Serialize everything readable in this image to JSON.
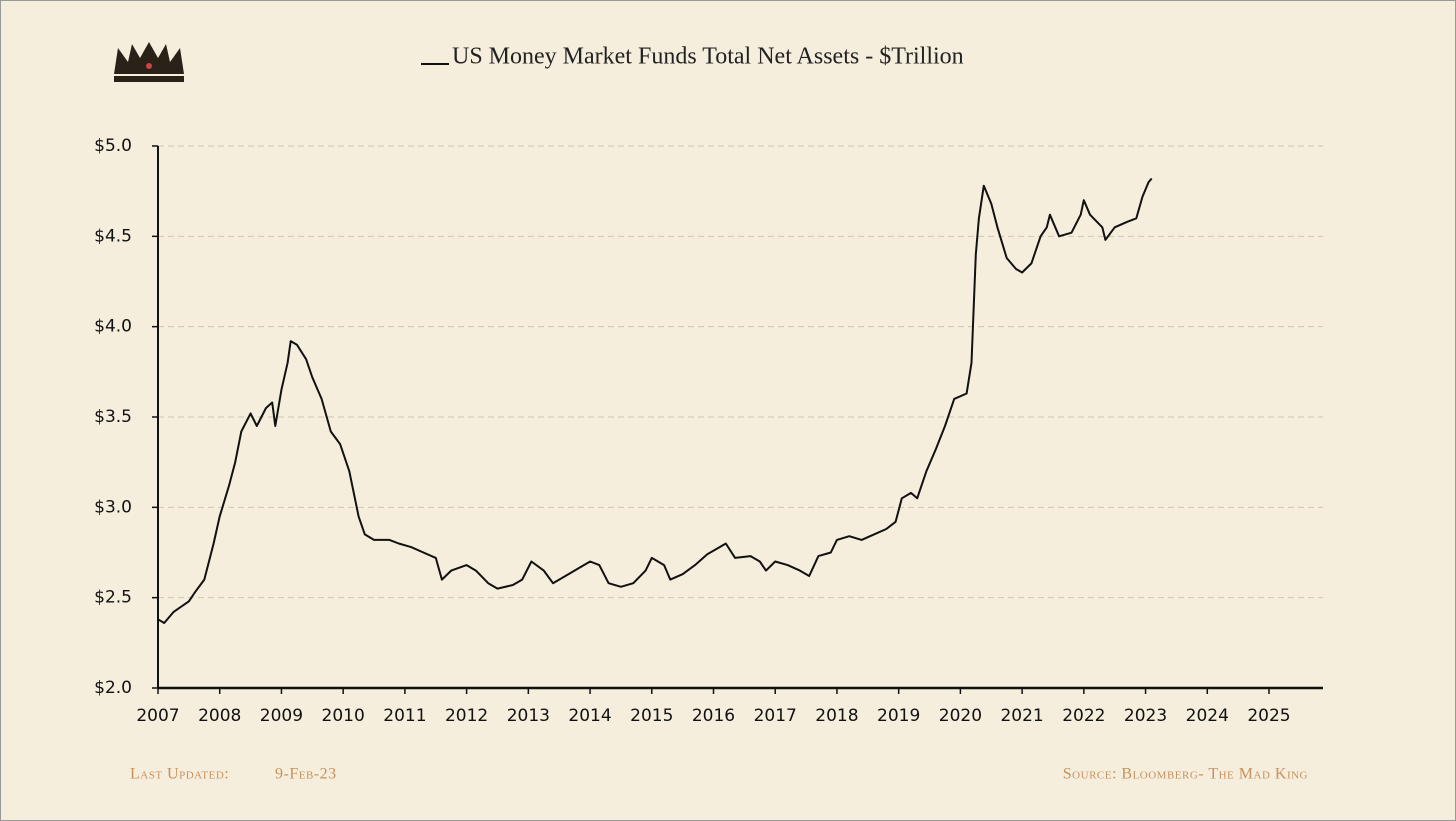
{
  "chart_data": {
    "type": "line",
    "series": [
      {
        "name": "US Money Market Funds Total Net Assets - $Trillion",
        "color": "#111111",
        "x": [
          2007.0,
          2007.1,
          2007.25,
          2007.5,
          2007.6,
          2007.75,
          2007.9,
          2008.0,
          2008.15,
          2008.25,
          2008.35,
          2008.5,
          2008.6,
          2008.75,
          2008.85,
          2008.9,
          2009.0,
          2009.1,
          2009.15,
          2009.25,
          2009.4,
          2009.5,
          2009.65,
          2009.8,
          2009.95,
          2010.1,
          2010.25,
          2010.35,
          2010.5,
          2010.75,
          2010.9,
          2011.1,
          2011.3,
          2011.5,
          2011.6,
          2011.75,
          2012.0,
          2012.15,
          2012.35,
          2012.5,
          2012.75,
          2012.9,
          2013.05,
          2013.25,
          2013.4,
          2013.6,
          2013.8,
          2014.0,
          2014.15,
          2014.3,
          2014.5,
          2014.7,
          2014.9,
          2015.0,
          2015.2,
          2015.3,
          2015.5,
          2015.7,
          2015.9,
          2016.1,
          2016.2,
          2016.35,
          2016.6,
          2016.75,
          2016.85,
          2017.0,
          2017.2,
          2017.4,
          2017.55,
          2017.7,
          2017.9,
          2018.0,
          2018.2,
          2018.4,
          2018.6,
          2018.8,
          2018.95,
          2019.05,
          2019.2,
          2019.3,
          2019.45,
          2019.6,
          2019.75,
          2019.9,
          2020.1,
          2020.18,
          2020.25,
          2020.3,
          2020.38,
          2020.5,
          2020.6,
          2020.75,
          2020.9,
          2021.0,
          2021.15,
          2021.3,
          2021.4,
          2021.45,
          2021.6,
          2021.8,
          2021.95,
          2022.0,
          2022.1,
          2022.3,
          2022.35,
          2022.5,
          2022.7,
          2022.85,
          2022.95,
          2023.05,
          2023.1
        ],
        "values": [
          2.38,
          2.36,
          2.42,
          2.48,
          2.53,
          2.6,
          2.8,
          2.95,
          3.12,
          3.25,
          3.42,
          3.52,
          3.45,
          3.55,
          3.58,
          3.45,
          3.65,
          3.8,
          3.92,
          3.9,
          3.82,
          3.72,
          3.6,
          3.42,
          3.35,
          3.2,
          2.95,
          2.85,
          2.82,
          2.82,
          2.8,
          2.78,
          2.75,
          2.72,
          2.6,
          2.65,
          2.68,
          2.65,
          2.58,
          2.55,
          2.57,
          2.6,
          2.7,
          2.65,
          2.58,
          2.62,
          2.66,
          2.7,
          2.68,
          2.58,
          2.56,
          2.58,
          2.65,
          2.72,
          2.68,
          2.6,
          2.63,
          2.68,
          2.74,
          2.78,
          2.8,
          2.72,
          2.73,
          2.7,
          2.65,
          2.7,
          2.68,
          2.65,
          2.62,
          2.73,
          2.75,
          2.82,
          2.84,
          2.82,
          2.85,
          2.88,
          2.92,
          3.05,
          3.08,
          3.05,
          3.2,
          3.32,
          3.45,
          3.6,
          3.63,
          3.8,
          4.4,
          4.6,
          4.78,
          4.68,
          4.55,
          4.38,
          4.32,
          4.3,
          4.35,
          4.5,
          4.55,
          4.62,
          4.5,
          4.52,
          4.62,
          4.7,
          4.62,
          4.55,
          4.48,
          4.55,
          4.58,
          4.6,
          4.72,
          4.8,
          4.82
        ]
      }
    ],
    "xlim": [
      2007,
      2025
    ],
    "xticks": [
      2007,
      2008,
      2009,
      2010,
      2011,
      2012,
      2013,
      2014,
      2015,
      2016,
      2017,
      2018,
      2019,
      2020,
      2021,
      2022,
      2023,
      2024,
      2025
    ],
    "ylim": [
      2.0,
      5.0
    ],
    "yticks": [
      {
        "value": 2.0,
        "label": "$2.0"
      },
      {
        "value": 2.5,
        "label": "$2.5"
      },
      {
        "value": 3.0,
        "label": "$3.0"
      },
      {
        "value": 3.5,
        "label": "$3.5"
      },
      {
        "value": 4.0,
        "label": "$4.0"
      },
      {
        "value": 4.5,
        "label": "$4.5"
      },
      {
        "value": 5.0,
        "label": "$5.0"
      }
    ],
    "grid": true,
    "footer_left_label": "Last Updated:",
    "footer_left_value": "9-Feb-23",
    "footer_right": "Source: Bloomberg- The Mad King"
  }
}
